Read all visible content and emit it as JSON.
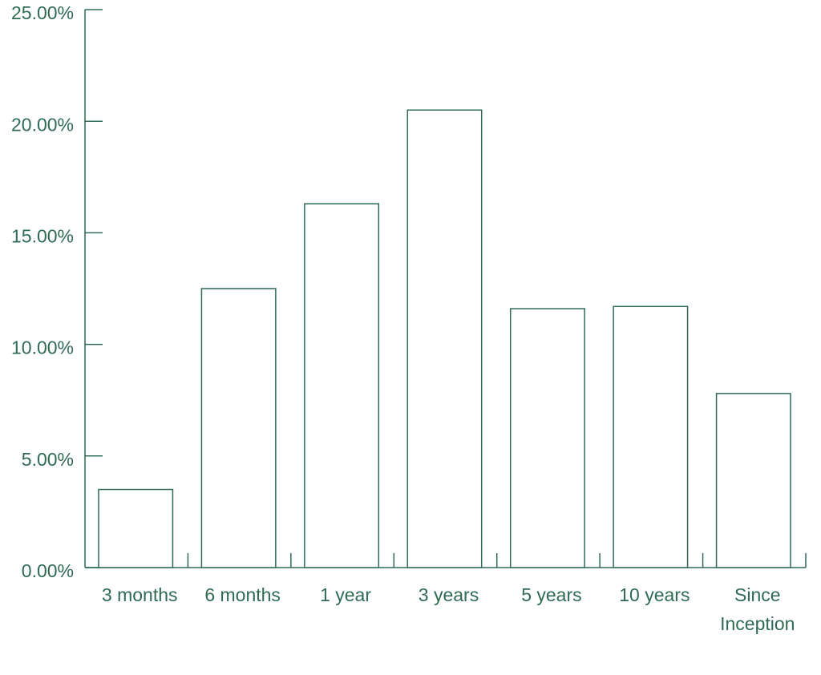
{
  "chart_data": {
    "type": "bar",
    "categories": [
      "3 months",
      "6 months",
      "1 year",
      "3 years",
      "5 years",
      "10 years",
      "Since Inception"
    ],
    "values": [
      3.5,
      12.5,
      16.3,
      20.5,
      11.6,
      11.7,
      7.8
    ],
    "color": "#2f6b52",
    "ylim": [
      0,
      25
    ],
    "yticks": [
      {
        "value": 0,
        "label": "0.00%"
      },
      {
        "value": 5,
        "label": "5.00%"
      },
      {
        "value": 10,
        "label": "10.00%"
      },
      {
        "value": 15,
        "label": "15.00%"
      },
      {
        "value": 20,
        "label": "20.00%"
      },
      {
        "value": 25,
        "label": "25.00%"
      }
    ]
  }
}
